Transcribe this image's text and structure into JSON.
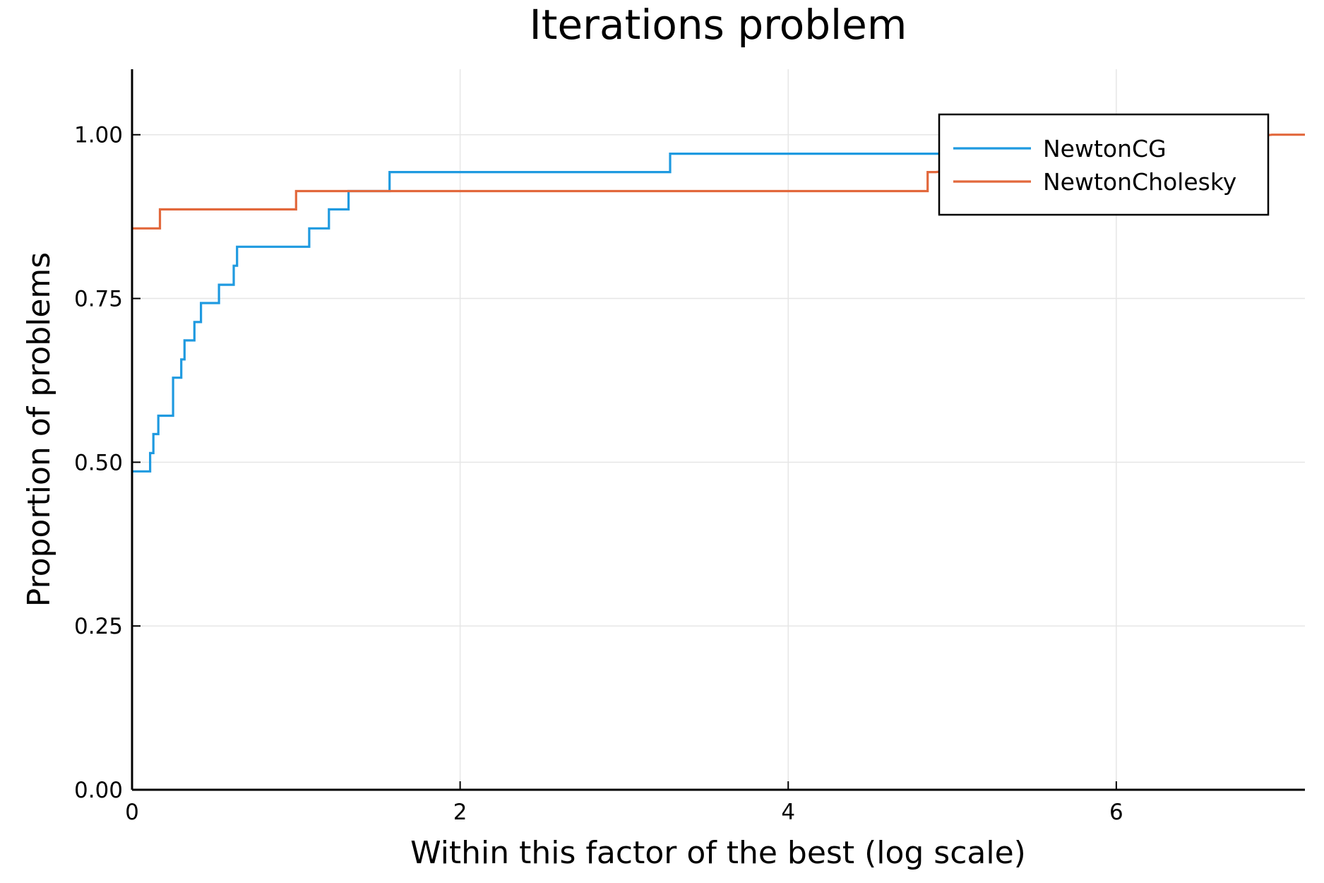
{
  "chart_data": {
    "type": "line",
    "step": true,
    "title": "Iterations problem",
    "xlabel": "Within this factor of the best (log scale)",
    "ylabel": "Proportion of problems",
    "xlim": [
      0,
      7.15
    ],
    "ylim": [
      0,
      1.1
    ],
    "xticks": [
      0,
      2,
      4,
      6
    ],
    "xtick_labels": [
      "0",
      "2",
      "4",
      "6"
    ],
    "yticks": [
      0,
      0.25,
      0.5,
      0.75,
      1.0
    ],
    "ytick_labels": [
      "0.00",
      "0.25",
      "0.50",
      "0.75",
      "1.00"
    ],
    "grid": true,
    "legend_position": "top-right",
    "series": [
      {
        "name": "NewtonCG",
        "color": "#1f9ae0",
        "points": [
          [
            0,
            0.486
          ],
          [
            0.11,
            0.486
          ],
          [
            0.11,
            0.514
          ],
          [
            0.13,
            0.514
          ],
          [
            0.13,
            0.543
          ],
          [
            0.16,
            0.543
          ],
          [
            0.16,
            0.571
          ],
          [
            0.25,
            0.571
          ],
          [
            0.25,
            0.629
          ],
          [
            0.3,
            0.629
          ],
          [
            0.3,
            0.657
          ],
          [
            0.32,
            0.657
          ],
          [
            0.32,
            0.686
          ],
          [
            0.38,
            0.686
          ],
          [
            0.38,
            0.714
          ],
          [
            0.42,
            0.714
          ],
          [
            0.42,
            0.743
          ],
          [
            0.53,
            0.743
          ],
          [
            0.53,
            0.771
          ],
          [
            0.62,
            0.771
          ],
          [
            0.62,
            0.8
          ],
          [
            0.64,
            0.8
          ],
          [
            0.64,
            0.829
          ],
          [
            1.08,
            0.829
          ],
          [
            1.08,
            0.857
          ],
          [
            1.2,
            0.857
          ],
          [
            1.2,
            0.886
          ],
          [
            1.32,
            0.886
          ],
          [
            1.32,
            0.914
          ],
          [
            1.57,
            0.914
          ],
          [
            1.57,
            0.943
          ],
          [
            3.28,
            0.943
          ],
          [
            3.28,
            0.971
          ],
          [
            5.1,
            0.971
          ]
        ]
      },
      {
        "name": "NewtonCholesky",
        "color": "#e2683c",
        "points": [
          [
            0,
            0.857
          ],
          [
            0.17,
            0.857
          ],
          [
            0.17,
            0.886
          ],
          [
            1.0,
            0.886
          ],
          [
            1.0,
            0.914
          ],
          [
            4.85,
            0.914
          ],
          [
            4.85,
            0.943
          ],
          [
            4.9,
            0.943
          ],
          [
            6.95,
            1.0
          ],
          [
            7.15,
            1.0
          ]
        ]
      }
    ]
  }
}
